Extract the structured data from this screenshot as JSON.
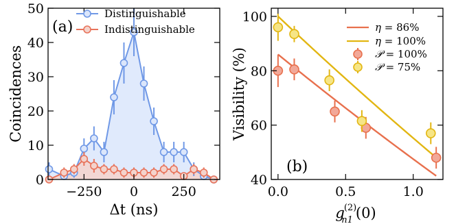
{
  "chart_data": [
    {
      "type": "line",
      "panel_label": "(a)",
      "xlabel": "Δt (ns)",
      "ylabel": "Coincidences",
      "xlim": [
        -430,
        430
      ],
      "ylim": [
        0,
        50
      ],
      "x_ticks": [
        -250,
        0,
        250
      ],
      "x_tick_labels": [
        "−250",
        "0",
        "250"
      ],
      "y_ticks": [
        0,
        10,
        20,
        30,
        40,
        50
      ],
      "y_tick_labels": [
        "0",
        "10",
        "20",
        "30",
        "40",
        "50"
      ],
      "legend_position": "top-right",
      "grid": false,
      "series": [
        {
          "name": "Distinguishable",
          "color": "#6f98e6",
          "fill": "#dbe6fb",
          "x": [
            -425,
            -350,
            -300,
            -250,
            -200,
            -150,
            -100,
            -50,
            0,
            50,
            100,
            150,
            200,
            250,
            300,
            350,
            400
          ],
          "y": [
            3,
            1,
            2,
            9,
            12,
            8,
            24,
            34,
            43,
            28,
            17,
            8,
            8,
            8,
            3,
            1,
            0
          ],
          "yerr": [
            2,
            1,
            1.5,
            3,
            3.5,
            3,
            5,
            6,
            7,
            5,
            4,
            3,
            3,
            3,
            2,
            1,
            0.5
          ]
        },
        {
          "name": "Indistinguishable",
          "color": "#e8735a",
          "fill": "#f4d3cc",
          "x": [
            -425,
            -350,
            -300,
            -250,
            -200,
            -150,
            -100,
            -50,
            0,
            50,
            100,
            150,
            200,
            250,
            300,
            350,
            400
          ],
          "y": [
            0,
            2,
            3,
            6,
            4,
            3,
            3,
            2,
            2,
            2,
            2,
            3,
            3,
            1,
            3,
            2,
            0
          ],
          "yerr": [
            0.5,
            1.5,
            1.5,
            2,
            2,
            1.5,
            1.5,
            1.5,
            1.5,
            1.5,
            1.5,
            1.5,
            1.5,
            1,
            1.5,
            1.5,
            0.5
          ]
        }
      ]
    },
    {
      "type": "scatter",
      "panel_label": "(b)",
      "xlabel_main": "g",
      "xlabel_sub": "n1",
      "xlabel_sup": "(2)",
      "xlabel_arg": "(0)",
      "ylabel": "Visibility (%)",
      "xlim": [
        -0.05,
        1.22
      ],
      "ylim": [
        40,
        103
      ],
      "x_ticks": [
        0,
        0.5,
        1
      ],
      "x_tick_labels": [
        "0.0",
        "0.5",
        "1.0"
      ],
      "y_ticks": [
        40,
        60,
        80,
        100
      ],
      "y_tick_labels": [
        "40",
        "60",
        "80",
        "100"
      ],
      "legend_position": "top-right",
      "grid": false,
      "lines": [
        {
          "name_sym": "η",
          "name_rest": " = 86%",
          "color": "#e8704d",
          "eta": 0.86
        },
        {
          "name_sym": "η",
          "name_rest": " = 100%",
          "color": "#e2b612",
          "eta": 1.0
        }
      ],
      "series": [
        {
          "name_sym": "𝒫",
          "name_rest": " = 100%",
          "color": "#e8704d",
          "face": "#f2a898",
          "x": [
            0.0,
            0.12,
            0.42,
            0.65,
            1.17
          ],
          "y": [
            80,
            80.5,
            65,
            59,
            48
          ],
          "yerr": [
            6,
            4,
            4,
            4,
            4
          ]
        },
        {
          "name_sym": "𝒫",
          "name_rest": " = 75%",
          "color": "#e2b612",
          "face": "#f6e586",
          "x": [
            0.0,
            0.12,
            0.38,
            0.62,
            1.13
          ],
          "y": [
            96,
            93.5,
            76.5,
            61.5,
            57
          ],
          "yerr": [
            5,
            3,
            4,
            4,
            4
          ]
        }
      ]
    }
  ]
}
